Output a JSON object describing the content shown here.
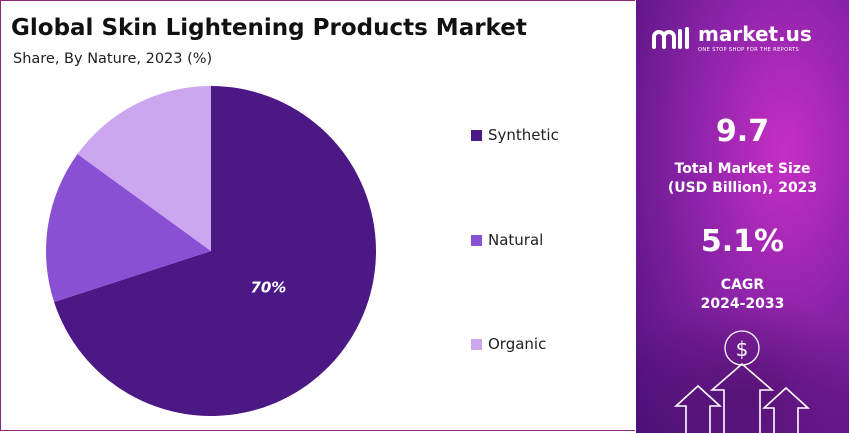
{
  "title": "Global Skin Lightening Products Market",
  "subtitle": "Share, By Nature, 2023 (%)",
  "chart_data": {
    "type": "pie",
    "title": "Global Skin Lightening Products Market",
    "subtitle": "Share, By Nature, 2023 (%)",
    "categories": [
      "Synthetic",
      "Natural",
      "Organic"
    ],
    "values": [
      70,
      15,
      15
    ],
    "colors": [
      "#4b1886",
      "#8a50d4",
      "#cda6f0"
    ],
    "data_labels": [
      "70%",
      "",
      ""
    ],
    "legend_position": "right"
  },
  "legend": [
    {
      "label": "Synthetic",
      "color": "#4b1886"
    },
    {
      "label": "Natural",
      "color": "#8a50d4"
    },
    {
      "label": "Organic",
      "color": "#cda6f0"
    }
  ],
  "sidebar": {
    "brand_name": "market.us",
    "brand_tagline": "ONE STOP SHOP FOR THE REPORTS",
    "market_size_value": "9.7",
    "market_size_label_1": "Total Market Size",
    "market_size_label_2": "(USD Billion), 2023",
    "cagr_value": "5.1%",
    "cagr_label_1": "CAGR",
    "cagr_label_2": "2024-2033",
    "icons": [
      "market-us-logo-icon",
      "dollar-coin-icon",
      "up-arrow-icon"
    ]
  }
}
